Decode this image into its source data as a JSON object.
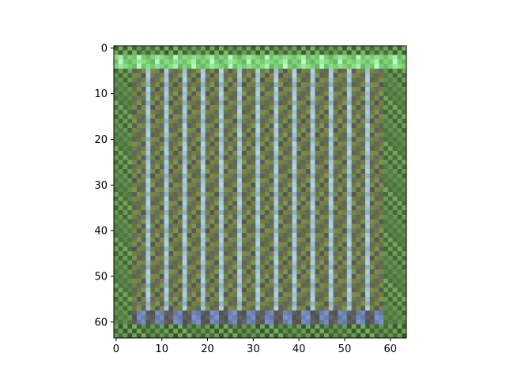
{
  "chart_data": {
    "type": "heatmap",
    "title": "",
    "xlabel": "",
    "ylabel": "",
    "grid": false,
    "legend": "none",
    "image_size": [
      64,
      64
    ],
    "xlim": [
      -0.5,
      63.5
    ],
    "ylim": [
      63.5,
      -0.5
    ],
    "y_axis_inverted": true,
    "x_ticks": [
      0,
      10,
      20,
      30,
      40,
      50,
      60
    ],
    "y_ticks": [
      0,
      10,
      20,
      30,
      40,
      50,
      60
    ],
    "x_tick_labels": [
      "0",
      "10",
      "20",
      "30",
      "40",
      "50",
      "60"
    ],
    "y_tick_labels": [
      "0",
      "10",
      "20",
      "30",
      "40",
      "50",
      "60"
    ],
    "description": "",
    "colors": {
      "frame_outer": "#4a6a3a",
      "top_band": "#7fd67a",
      "top_band_light": "#a8f0b0",
      "side_band": "#6fa85a",
      "bottom_band": "#6b7fb0",
      "stripe_light": "#a9c9dc",
      "stripe_mid": "#8fb0c0",
      "checker_dark": "#5a5a5a",
      "checker_olive": "#7a7a42",
      "checker_green": "#6a8a4a",
      "axis": "#000000"
    }
  }
}
